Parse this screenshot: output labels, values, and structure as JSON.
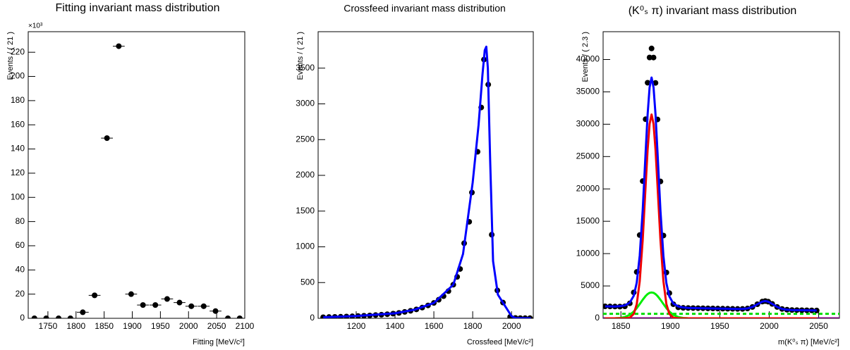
{
  "chart_data": [
    {
      "type": "scatter",
      "title": "Fitting invariant mass distribution",
      "x_label": "Fitting [MeV/c²]",
      "y_label": "Events / ( 21 )",
      "y_multiplier": "×10³",
      "x": [
        1726,
        1747,
        1769,
        1790,
        1812,
        1833,
        1855,
        1876,
        1898,
        1919,
        1941,
        1962,
        1984,
        2005,
        2027,
        2048,
        2070,
        2091
      ],
      "xerr": 10.5,
      "series": [
        {
          "type": "scatter",
          "color": "#000000",
          "values": [
            0,
            0,
            0,
            0,
            5,
            19,
            149,
            225,
            20,
            11,
            11,
            16,
            13,
            10,
            10,
            6,
            0,
            0
          ]
        }
      ],
      "xlim": [
        1715,
        2100
      ],
      "ylim": [
        0,
        237
      ],
      "xticks": [
        1750,
        1800,
        1850,
        1900,
        1950,
        2000,
        2050,
        2100
      ],
      "yticks": [
        0,
        20,
        40,
        60,
        80,
        100,
        120,
        140,
        160,
        180,
        200,
        220
      ]
    },
    {
      "type": "line",
      "title": "Crossfeed invariant mass distribution",
      "x_label": "Crossfeed [MeV/c²]",
      "y_label": "Events / ( 21 )",
      "x": [
        1030,
        1060,
        1090,
        1120,
        1150,
        1180,
        1210,
        1240,
        1270,
        1300,
        1330,
        1360,
        1390,
        1420,
        1450,
        1480,
        1510,
        1540,
        1570,
        1600,
        1625,
        1650,
        1675,
        1700,
        1720,
        1735,
        1756,
        1782,
        1796,
        1825,
        1844,
        1858,
        1880,
        1898,
        1927,
        1956,
        1993,
        2020,
        2045,
        2070,
        2095
      ],
      "series": [
        {
          "type": "scatter",
          "color": "#000000",
          "values": [
            15,
            18,
            20,
            22,
            25,
            28,
            32,
            36,
            40,
            45,
            50,
            57,
            65,
            75,
            90,
            105,
            125,
            150,
            180,
            215,
            260,
            310,
            380,
            470,
            580,
            690,
            1050,
            1350,
            1760,
            2330,
            2950,
            3620,
            3270,
            1170,
            390,
            220,
            20,
            5,
            3,
            2,
            2
          ]
        },
        {
          "type": "line",
          "color": "#0000ff",
          "x": [
            1030,
            1200,
            1400,
            1500,
            1600,
            1700,
            1750,
            1800,
            1830,
            1850,
            1862,
            1870,
            1878,
            1890,
            1905,
            1930,
            1960,
            2000,
            2020,
            2100
          ],
          "values": [
            15,
            33,
            70,
            120,
            215,
            470,
            900,
            1900,
            2700,
            3400,
            3750,
            3800,
            3500,
            2200,
            800,
            330,
            200,
            30,
            3,
            0
          ]
        }
      ],
      "xlim": [
        1004,
        2112
      ],
      "ylim": [
        0,
        4010
      ],
      "xticks": [
        1200,
        1400,
        1600,
        1800,
        2000
      ],
      "yticks": [
        0,
        500,
        1000,
        1500,
        2000,
        2500,
        3000,
        3500
      ]
    },
    {
      "type": "line",
      "title": "(K⁰ₛ π) invariant mass distribution",
      "x_label": "m(K⁰ₛ π) [MeV/c²]",
      "y_label": "Events / ( 2.3 )",
      "x": [
        1834,
        1839,
        1844,
        1849,
        1854,
        1859,
        1863,
        1866,
        1869,
        1872,
        1875,
        1877,
        1879,
        1881,
        1883,
        1885,
        1887,
        1890,
        1893,
        1896,
        1899,
        1903,
        1908,
        1913,
        1918,
        1923,
        1928,
        1933,
        1938,
        1943,
        1948,
        1953,
        1958,
        1963,
        1968,
        1973,
        1978,
        1983,
        1988,
        1993,
        1996,
        1999,
        2003,
        2008,
        2013,
        2018,
        2023,
        2028,
        2033,
        2038,
        2043,
        2048
      ],
      "series": [
        {
          "type": "line",
          "color": "#00dd00",
          "dash": true,
          "x": [
            1832,
            2071
          ],
          "values": [
            700,
            700
          ]
        },
        {
          "type": "line",
          "color": "#800080",
          "x": [
            1832,
            2071
          ],
          "values": [
            0,
            0
          ]
        },
        {
          "type": "line",
          "color": "#00ee00",
          "values": [
            0,
            0,
            14,
            58,
            197,
            541,
            1048,
            1579,
            2206,
            2861,
            3447,
            3744,
            3935,
            4000,
            3935,
            3744,
            3447,
            2861,
            2206,
            1579,
            1048,
            541,
            197,
            58,
            14,
            3,
            0,
            0,
            0,
            0,
            0,
            0,
            0,
            0,
            0,
            0,
            0,
            0,
            0,
            0,
            0,
            0,
            0,
            0,
            0,
            0,
            0,
            0,
            0,
            0,
            0,
            0
          ]
        },
        {
          "type": "scatter",
          "color": "#000000",
          "values": [
            1850,
            1835,
            1820,
            1809,
            1851,
            2315,
            4003,
            7167,
            12865,
            21206,
            30777,
            36411,
            40315,
            41709,
            40303,
            36387,
            30741,
            21152,
            12793,
            7077,
            3895,
            2183,
            1689,
            1613,
            1598,
            1583,
            1568,
            1553,
            1538,
            1523,
            1508,
            1493,
            1478,
            1463,
            1451,
            1454,
            1521,
            1750,
            2177,
            2585,
            2664,
            2567,
            2230,
            1750,
            1449,
            1328,
            1283,
            1268,
            1253,
            1238,
            1223,
            1208
          ]
        },
        {
          "type": "line",
          "color": "#ee0000",
          "values": [
            0,
            0,
            0,
            0,
            6,
            102,
            684,
            2201,
            5740,
            12070,
            20570,
            26060,
            30040,
            31500,
            30040,
            26060,
            20570,
            12070,
            5740,
            2201,
            684,
            102,
            6,
            0,
            0,
            0,
            0,
            0,
            0,
            0,
            0,
            0,
            0,
            0,
            0,
            0,
            0,
            0,
            0,
            0,
            0,
            0,
            0,
            0,
            0,
            0,
            0,
            0,
            0,
            0,
            0,
            0
          ]
        },
        {
          "type": "line",
          "color": "#0000ff",
          "values": [
            1850,
            1835,
            1834,
            1867,
            1993,
            2418,
            3495,
            5534,
            9691,
            16667,
            25744,
            31525,
            35690,
            37209,
            35678,
            31501,
            25708,
            16613,
            9619,
            5444,
            3387,
            2286,
            1831,
            1671,
            1612,
            1586,
            1568,
            1553,
            1538,
            1523,
            1508,
            1493,
            1478,
            1463,
            1451,
            1454,
            1521,
            1750,
            2177,
            2585,
            2664,
            2567,
            2230,
            1750,
            1449,
            1328,
            1283,
            1268,
            1253,
            1238,
            1223,
            1208
          ]
        }
      ],
      "xlim": [
        1832,
        2071
      ],
      "ylim": [
        0,
        44300
      ],
      "xticks": [
        1850,
        1900,
        1950,
        2000,
        2050
      ],
      "yticks": [
        0,
        5000,
        10000,
        15000,
        20000,
        25000,
        30000,
        35000,
        40000
      ]
    }
  ]
}
